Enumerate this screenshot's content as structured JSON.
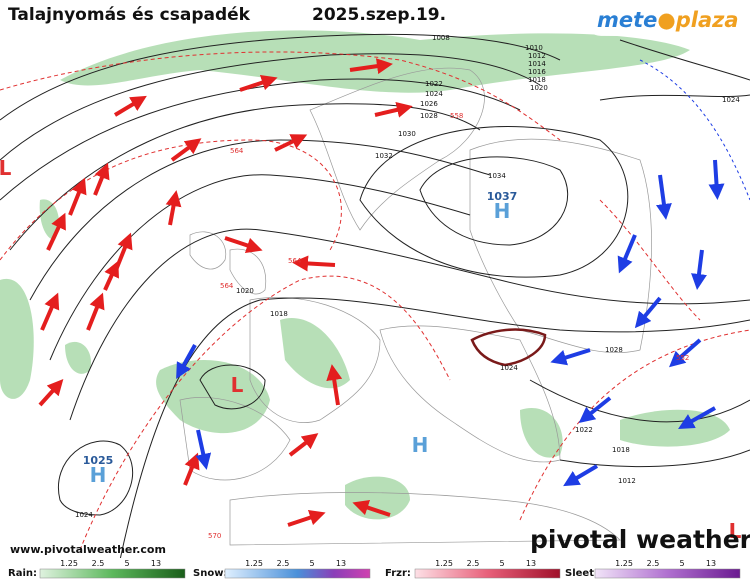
{
  "header": {
    "title": "Talajnyomás és csapadék",
    "date": "2025.szep.19.",
    "logo_left": "mete",
    "logo_right": "plaza"
  },
  "footer": {
    "url": "www.pivotalweather.com",
    "brand": "pivotal weather"
  },
  "isobar_labels": [
    1008,
    1010,
    1012,
    1014,
    1016,
    1018,
    1020,
    1022,
    1024,
    1026,
    1028,
    1030,
    1032,
    1034,
    1024,
    1020,
    1018,
    1024,
    1028,
    1022,
    1018,
    1012,
    1024
  ],
  "thickness_labels": [
    558,
    564,
    564,
    564,
    552,
    570
  ],
  "centers": [
    {
      "letter": "H",
      "pressure": 1037
    },
    {
      "letter": "H",
      "pressure": 1025
    },
    {
      "letter": "L"
    },
    {
      "letter": "L"
    },
    {
      "letter": "H"
    },
    {
      "letter": "L"
    }
  ],
  "legend": [
    {
      "label": "Rain:",
      "ticks": [
        1.25,
        2.5,
        5,
        13
      ]
    },
    {
      "label": "Snow:",
      "ticks": [
        1.25,
        2.5,
        5,
        13
      ]
    },
    {
      "label": "Frzr:",
      "ticks": [
        1.25,
        2.5,
        5,
        13
      ]
    },
    {
      "label": "Sleet:",
      "ticks": [
        1.25,
        2.5,
        5,
        13
      ]
    }
  ]
}
